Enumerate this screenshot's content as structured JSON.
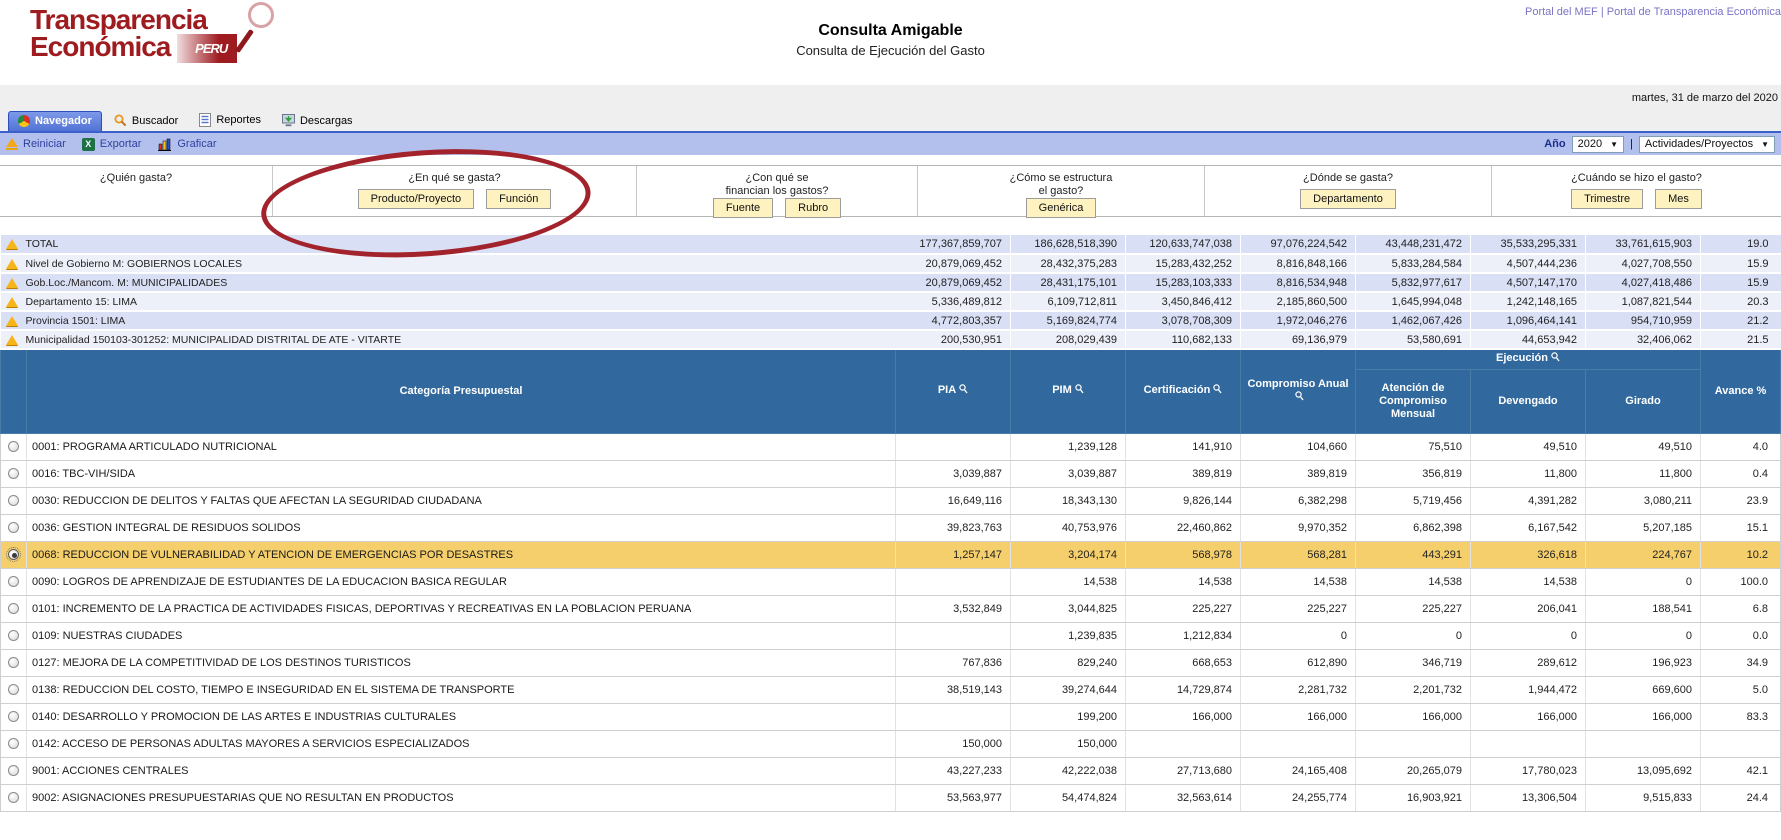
{
  "colors": {
    "table_header": "#31699E",
    "selected_row": "#F5CF6B",
    "annotation": "#A2232B",
    "toolbar_band": "#B3C0EE",
    "summary_row_dark": "#D9DFF5",
    "summary_row_light": "#EDEFF9",
    "logo_red": "#9E1B20"
  },
  "header": {
    "logo": {
      "line1": "Transparencia",
      "line2": "Económica",
      "badge": "PERU"
    },
    "title": "Consulta Amigable",
    "subtitle": "Consulta de Ejecución del Gasto",
    "links": [
      "Portal del MEF",
      "Portal de Transparencia Económica"
    ],
    "links_separator": "|",
    "date": "martes, 31 de marzo del 2020"
  },
  "tabs": [
    {
      "label": "Navegador",
      "icon": "navigator-icon",
      "active": true
    },
    {
      "label": "Buscador",
      "icon": "search-icon",
      "active": false
    },
    {
      "label": "Reportes",
      "icon": "report-icon",
      "active": false
    },
    {
      "label": "Descargas",
      "icon": "download-icon",
      "active": false
    }
  ],
  "toolbar": {
    "actions": [
      {
        "label": "Reiniciar",
        "icon": "reset-icon"
      },
      {
        "label": "Exportar",
        "icon": "excel-icon"
      },
      {
        "label": "Graficar",
        "icon": "chart-icon"
      }
    ],
    "year_label": "Año",
    "year_value": "2020",
    "separator": "|",
    "view_value": "Actividades/Proyectos"
  },
  "filters": {
    "sections": [
      {
        "question": "¿Quién gasta?",
        "buttons": []
      },
      {
        "question": "¿En qué se gasta?",
        "buttons": [
          "Producto/Proyecto",
          "Función"
        ],
        "annotated_button": "Producto/Proyecto"
      },
      {
        "question": "¿Con qué se\nfinancian los gastos?",
        "buttons": [
          "Fuente",
          "Rubro"
        ]
      },
      {
        "question": "¿Cómo se estructura\nel gasto?",
        "buttons": [
          "Genérica"
        ]
      },
      {
        "question": "¿Dónde se gasta?",
        "buttons": [
          "Departamento"
        ]
      },
      {
        "question": "¿Cuándo se hizo el gasto?",
        "buttons": [
          "Trimestre",
          "Mes"
        ]
      }
    ]
  },
  "summary_rows": [
    {
      "label": "TOTAL",
      "values": [
        "177,367,859,707",
        "186,628,518,390",
        "120,633,747,038",
        "97,076,224,542",
        "43,448,231,472",
        "35,533,295,331",
        "33,761,615,903",
        "19.0"
      ]
    },
    {
      "label": "Nivel de Gobierno M: GOBIERNOS LOCALES",
      "values": [
        "20,879,069,452",
        "28,432,375,283",
        "15,283,432,252",
        "8,816,848,166",
        "5,833,284,584",
        "4,507,444,236",
        "4,027,708,550",
        "15.9"
      ]
    },
    {
      "label": "Gob.Loc./Mancom. M: MUNICIPALIDADES",
      "values": [
        "20,879,069,452",
        "28,431,175,101",
        "15,283,103,333",
        "8,816,534,948",
        "5,832,977,617",
        "4,507,147,170",
        "4,027,418,486",
        "15.9"
      ]
    },
    {
      "label": "Departamento 15: LIMA",
      "values": [
        "5,336,489,812",
        "6,109,712,811",
        "3,450,846,412",
        "2,185,860,500",
        "1,645,994,048",
        "1,242,148,165",
        "1,087,821,544",
        "20.3"
      ]
    },
    {
      "label": "Provincia 1501: LIMA",
      "values": [
        "4,772,803,357",
        "5,169,824,774",
        "3,078,708,309",
        "1,972,046,276",
        "1,462,067,426",
        "1,096,464,141",
        "954,710,959",
        "21.2"
      ]
    },
    {
      "label": "Municipalidad 150103-301252: MUNICIPALIDAD DISTRITAL DE ATE - VITARTE",
      "values": [
        "200,530,951",
        "208,029,439",
        "110,682,133",
        "69,136,979",
        "53,580,691",
        "44,653,942",
        "32,406,062",
        "21.5"
      ]
    }
  ],
  "table": {
    "category_header": "Categoría Presupuestal",
    "columns": [
      "PIA",
      "PIM",
      "Certificación",
      "Compromiso Anual"
    ],
    "ejecucion_header": "Ejecución",
    "ejecucion_sub": [
      "Atención de Compromiso Mensual",
      "Devengado",
      "Girado"
    ],
    "avance_header": "Avance %",
    "rows": [
      {
        "label": "0001: PROGRAMA ARTICULADO NUTRICIONAL",
        "selected": false,
        "values": [
          "",
          "1,239,128",
          "141,910",
          "104,660",
          "75,510",
          "49,510",
          "49,510",
          "4.0"
        ]
      },
      {
        "label": "0016: TBC-VIH/SIDA",
        "selected": false,
        "values": [
          "3,039,887",
          "3,039,887",
          "389,819",
          "389,819",
          "356,819",
          "11,800",
          "11,800",
          "0.4"
        ]
      },
      {
        "label": "0030: REDUCCION DE DELITOS Y FALTAS QUE AFECTAN LA SEGURIDAD CIUDADANA",
        "selected": false,
        "values": [
          "16,649,116",
          "18,343,130",
          "9,826,144",
          "6,382,298",
          "5,719,456",
          "4,391,282",
          "3,080,211",
          "23.9"
        ]
      },
      {
        "label": "0036: GESTION INTEGRAL DE RESIDUOS SOLIDOS",
        "selected": false,
        "values": [
          "39,823,763",
          "40,753,976",
          "22,460,862",
          "9,970,352",
          "6,862,398",
          "6,167,542",
          "5,207,185",
          "15.1"
        ]
      },
      {
        "label": "0068: REDUCCION DE VULNERABILIDAD Y ATENCION DE EMERGENCIAS POR DESASTRES",
        "selected": true,
        "values": [
          "1,257,147",
          "3,204,174",
          "568,978",
          "568,281",
          "443,291",
          "326,618",
          "224,767",
          "10.2"
        ]
      },
      {
        "label": "0090: LOGROS DE APRENDIZAJE DE ESTUDIANTES DE LA EDUCACION BASICA REGULAR",
        "selected": false,
        "values": [
          "",
          "14,538",
          "14,538",
          "14,538",
          "14,538",
          "14,538",
          "0",
          "100.0"
        ]
      },
      {
        "label": "0101: INCREMENTO DE LA PRACTICA DE ACTIVIDADES FISICAS, DEPORTIVAS Y RECREATIVAS EN LA POBLACION PERUANA",
        "selected": false,
        "values": [
          "3,532,849",
          "3,044,825",
          "225,227",
          "225,227",
          "225,227",
          "206,041",
          "188,541",
          "6.8"
        ]
      },
      {
        "label": "0109: NUESTRAS CIUDADES",
        "selected": false,
        "values": [
          "",
          "1,239,835",
          "1,212,834",
          "0",
          "0",
          "0",
          "0",
          "0.0"
        ]
      },
      {
        "label": "0127: MEJORA DE LA COMPETITIVIDAD DE LOS DESTINOS TURISTICOS",
        "selected": false,
        "values": [
          "767,836",
          "829,240",
          "668,653",
          "612,890",
          "346,719",
          "289,612",
          "196,923",
          "34.9"
        ]
      },
      {
        "label": "0138: REDUCCION DEL COSTO, TIEMPO E INSEGURIDAD EN EL SISTEMA DE TRANSPORTE",
        "selected": false,
        "values": [
          "38,519,143",
          "39,274,644",
          "14,729,874",
          "2,281,732",
          "2,201,732",
          "1,944,472",
          "669,600",
          "5.0"
        ]
      },
      {
        "label": "0140: DESARROLLO Y PROMOCION DE LAS ARTES E INDUSTRIAS CULTURALES",
        "selected": false,
        "values": [
          "",
          "199,200",
          "166,000",
          "166,000",
          "166,000",
          "166,000",
          "166,000",
          "83.3"
        ]
      },
      {
        "label": "0142: ACCESO DE PERSONAS ADULTAS MAYORES A SERVICIOS ESPECIALIZADOS",
        "selected": false,
        "values": [
          "150,000",
          "150,000",
          "",
          "",
          "",
          "",
          "",
          ""
        ]
      },
      {
        "label": "9001: ACCIONES CENTRALES",
        "selected": false,
        "values": [
          "43,227,233",
          "42,222,038",
          "27,713,680",
          "24,165,408",
          "20,265,079",
          "17,780,023",
          "13,095,692",
          "42.1"
        ]
      },
      {
        "label": "9002: ASIGNACIONES PRESUPUESTARIAS QUE NO RESULTAN EN PRODUCTOS",
        "selected": false,
        "values": [
          "53,563,977",
          "54,474,824",
          "32,563,614",
          "24,255,774",
          "16,903,921",
          "13,306,504",
          "9,515,833",
          "24.4"
        ]
      }
    ]
  }
}
